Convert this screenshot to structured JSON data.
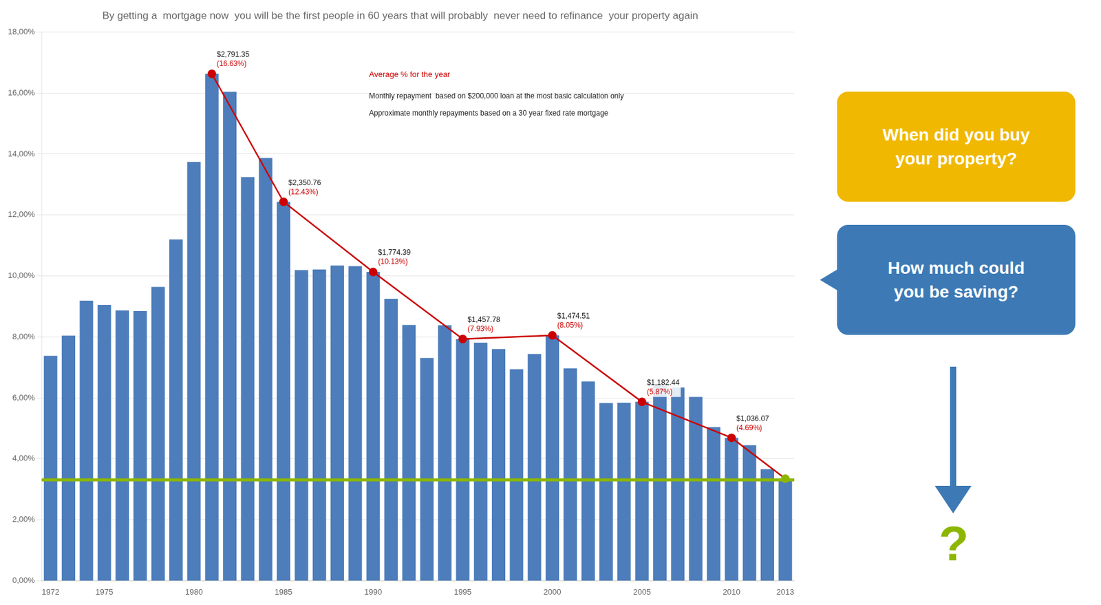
{
  "chart_data": {
    "type": "bar",
    "title": "By getting a  mortgage now  you will be the first people in 60 years that will probably  never need to refinance  your property again",
    "categories": [
      1972,
      null,
      null,
      1975,
      null,
      null,
      null,
      null,
      1980,
      null,
      null,
      null,
      null,
      1985,
      null,
      null,
      null,
      null,
      1990,
      null,
      null,
      null,
      null,
      1995,
      null,
      null,
      null,
      null,
      2000,
      null,
      null,
      null,
      null,
      2005,
      null,
      null,
      null,
      null,
      2010,
      null,
      null,
      2013
    ],
    "series": [
      {
        "type": "bar",
        "color": "#4d7dbb",
        "values": [
          7.38,
          8.04,
          9.19,
          9.05,
          8.87,
          8.85,
          9.64,
          11.2,
          13.74,
          16.63,
          16.04,
          13.24,
          13.87,
          12.43,
          10.19,
          10.21,
          10.34,
          10.32,
          10.13,
          9.25,
          8.39,
          7.31,
          8.38,
          7.93,
          7.81,
          7.6,
          6.94,
          7.44,
          8.05,
          6.97,
          6.54,
          5.83,
          5.84,
          5.87,
          6.41,
          6.34,
          6.03,
          5.04,
          4.69,
          4.45,
          3.66,
          3.35
        ]
      },
      {
        "type": "line",
        "color": "#cc0000",
        "marker": "circle",
        "data_labels": true,
        "values": [
          null,
          null,
          null,
          null,
          null,
          null,
          null,
          null,
          null,
          16.63,
          null,
          null,
          null,
          12.43,
          null,
          null,
          null,
          null,
          10.13,
          null,
          null,
          null,
          null,
          7.93,
          null,
          null,
          null,
          null,
          8.05,
          null,
          null,
          null,
          null,
          5.87,
          null,
          null,
          null,
          null,
          4.69,
          null,
          null,
          3.35
        ],
        "colors": [
          null,
          null,
          null,
          null,
          null,
          null,
          null,
          null,
          null,
          "#cc0000",
          null,
          null,
          null,
          "#cc0000",
          null,
          null,
          null,
          null,
          "#cc0000",
          null,
          null,
          null,
          null,
          "#cc0000",
          null,
          null,
          null,
          null,
          "#cc0000",
          null,
          null,
          null,
          null,
          "#cc0000",
          null,
          null,
          null,
          null,
          "#cc0000",
          null,
          null,
          "#8db600"
        ],
        "value_labels": [
          null,
          null,
          null,
          null,
          null,
          null,
          null,
          null,
          null,
          "(16.63%)",
          null,
          null,
          null,
          "(12.43%)",
          null,
          null,
          null,
          null,
          "(10.13%)",
          null,
          null,
          null,
          null,
          "(7.93%)",
          null,
          null,
          null,
          null,
          "(8.05%)",
          null,
          null,
          null,
          null,
          "(5.87%)",
          null,
          null,
          null,
          null,
          "(4.69%)",
          null,
          null,
          null
        ],
        "payment_labels": [
          null,
          null,
          null,
          null,
          null,
          null,
          null,
          null,
          null,
          "$2,791.35",
          null,
          null,
          null,
          "$2,350.76",
          null,
          null,
          null,
          null,
          "$1,774.39",
          null,
          null,
          null,
          null,
          "$1,457.78",
          null,
          null,
          null,
          null,
          "$1,474.51",
          null,
          null,
          null,
          null,
          "$1,182.44",
          null,
          null,
          null,
          null,
          "$1,036.07",
          null,
          null,
          null
        ]
      }
    ],
    "hline": {
      "value": 3.31,
      "color": "#8db600"
    },
    "ylim": [
      0,
      18
    ],
    "yticks": [
      {
        "value": 0,
        "label": "0,00%"
      },
      {
        "value": 2,
        "label": "2,00%"
      },
      {
        "value": 4,
        "label": "4,00%"
      },
      {
        "value": 6,
        "label": "6,00%"
      },
      {
        "value": 8,
        "label": "8,00%"
      },
      {
        "value": 10,
        "label": "10,00%"
      },
      {
        "value": 12,
        "label": "12,00%"
      },
      {
        "value": 14,
        "label": "14,00%"
      },
      {
        "value": 16,
        "label": "16,00%"
      },
      {
        "value": 18,
        "label": "18,00%"
      }
    ],
    "grid": true,
    "annotations": [
      {
        "text": "Average % for the year",
        "color": "#cc0000"
      },
      {
        "text": "Monthly repayment  based on $200,000 loan at the most basic calculation only"
      },
      {
        "text": "Approximate monthly repayments based on a 30 year fixed rate mortgage"
      },
      {
        "text": "When did you buy\nyour property?",
        "color": "#f0b800"
      },
      {
        "text": "How much could\nyou be saving?",
        "color": "#3d7ab5"
      },
      {
        "text": "?",
        "color": "#8db600"
      }
    ]
  }
}
